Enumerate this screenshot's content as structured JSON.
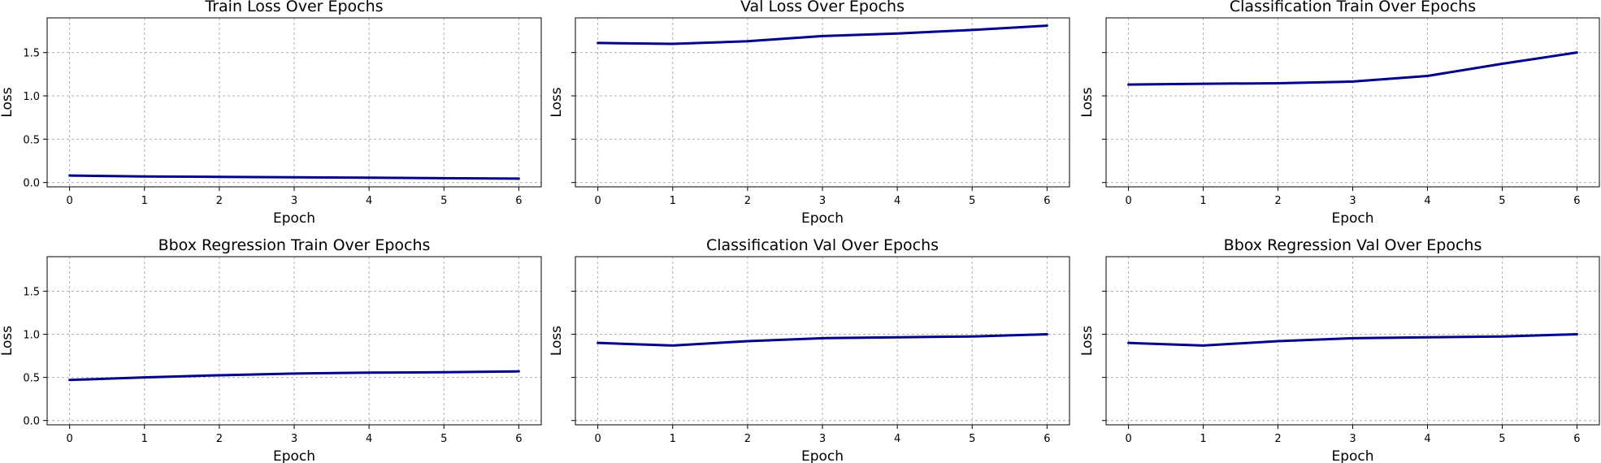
{
  "figure": {
    "line_color": "#00008b",
    "grid_color": "#b0b0b0"
  },
  "chart_data": [
    {
      "type": "line",
      "title": "Train Loss Over Epochs",
      "xlabel": "Epoch",
      "ylabel": "Loss",
      "x": [
        0,
        1,
        2,
        3,
        4,
        5,
        6
      ],
      "series": [
        {
          "values": [
            0.08,
            0.07,
            0.065,
            0.06,
            0.055,
            0.05,
            0.045
          ]
        }
      ],
      "xlim": [
        -0.3,
        6.3
      ],
      "ylim": [
        -0.05,
        1.9
      ],
      "xticks": [
        0,
        1,
        2,
        3,
        4,
        5,
        6
      ],
      "yticks": [
        0.0,
        0.5,
        1.0,
        1.5
      ],
      "yticklabels": [
        "0.0",
        "0.5",
        "1.0",
        "1.5"
      ],
      "grid": true
    },
    {
      "type": "line",
      "title": "Val Loss Over Epochs",
      "xlabel": "Epoch",
      "ylabel": "Loss",
      "x": [
        0,
        1,
        2,
        3,
        4,
        5,
        6
      ],
      "series": [
        {
          "values": [
            1.61,
            1.6,
            1.63,
            1.69,
            1.72,
            1.76,
            1.81
          ]
        }
      ],
      "xlim": [
        -0.3,
        6.3
      ],
      "ylim": [
        -0.05,
        1.9
      ],
      "xticks": [
        0,
        1,
        2,
        3,
        4,
        5,
        6
      ],
      "yticks": [
        0.0,
        0.5,
        1.0,
        1.5
      ],
      "yticklabels": [
        "",
        "",
        "",
        ""
      ],
      "grid": true
    },
    {
      "type": "line",
      "title": "Classification Train Over Epochs",
      "xlabel": "Epoch",
      "ylabel": "Loss",
      "x": [
        0,
        1,
        2,
        3,
        4,
        5,
        6
      ],
      "series": [
        {
          "values": [
            1.13,
            1.14,
            1.145,
            1.165,
            1.23,
            1.37,
            1.5
          ]
        }
      ],
      "xlim": [
        -0.3,
        6.3
      ],
      "ylim": [
        -0.05,
        1.9
      ],
      "xticks": [
        0,
        1,
        2,
        3,
        4,
        5,
        6
      ],
      "yticks": [
        0.0,
        0.5,
        1.0,
        1.5
      ],
      "yticklabels": [
        "",
        "",
        "",
        ""
      ],
      "grid": true
    },
    {
      "type": "line",
      "title": "Bbox Regression Train Over Epochs",
      "xlabel": "Epoch",
      "ylabel": "Loss",
      "x": [
        0,
        1,
        2,
        3,
        4,
        5,
        6
      ],
      "series": [
        {
          "values": [
            0.47,
            0.5,
            0.525,
            0.545,
            0.555,
            0.56,
            0.57
          ]
        }
      ],
      "xlim": [
        -0.3,
        6.3
      ],
      "ylim": [
        -0.05,
        1.9
      ],
      "xticks": [
        0,
        1,
        2,
        3,
        4,
        5,
        6
      ],
      "yticks": [
        0.0,
        0.5,
        1.0,
        1.5
      ],
      "yticklabels": [
        "0.0",
        "0.5",
        "1.0",
        "1.5"
      ],
      "grid": true
    },
    {
      "type": "line",
      "title": "Classification Val Over Epochs",
      "xlabel": "Epoch",
      "ylabel": "Loss",
      "x": [
        0,
        1,
        2,
        3,
        4,
        5,
        6
      ],
      "series": [
        {
          "values": [
            0.9,
            0.87,
            0.92,
            0.955,
            0.965,
            0.975,
            1.0
          ]
        }
      ],
      "xlim": [
        -0.3,
        6.3
      ],
      "ylim": [
        -0.05,
        1.9
      ],
      "xticks": [
        0,
        1,
        2,
        3,
        4,
        5,
        6
      ],
      "yticks": [
        0.0,
        0.5,
        1.0,
        1.5
      ],
      "yticklabels": [
        "",
        "",
        "",
        ""
      ],
      "grid": true
    },
    {
      "type": "line",
      "title": "Bbox Regression Val Over Epochs",
      "xlabel": "Epoch",
      "ylabel": "Loss",
      "x": [
        0,
        1,
        2,
        3,
        4,
        5,
        6
      ],
      "series": [
        {
          "values": [
            0.9,
            0.87,
            0.92,
            0.955,
            0.965,
            0.975,
            1.0
          ]
        }
      ],
      "xlim": [
        -0.3,
        6.3
      ],
      "ylim": [
        -0.05,
        1.9
      ],
      "xticks": [
        0,
        1,
        2,
        3,
        4,
        5,
        6
      ],
      "yticks": [
        0.0,
        0.5,
        1.0,
        1.5
      ],
      "yticklabels": [
        "",
        "",
        "",
        ""
      ],
      "grid": true
    }
  ]
}
